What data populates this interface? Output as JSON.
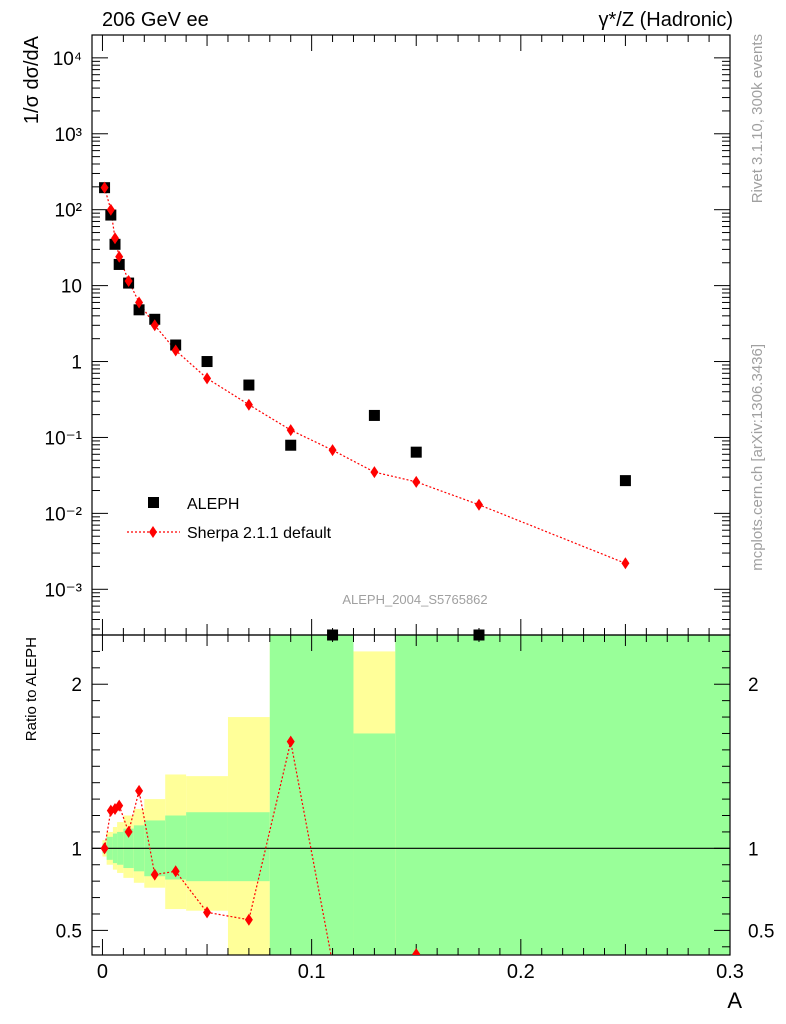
{
  "header": {
    "left": "206 GeV ee",
    "right": "γ*/Z (Hadronic)"
  },
  "side_labels": {
    "rivet": "Rivet 3.1.10,  300k events",
    "mcplots": "mcplots.cern.ch [arXiv:1306.3436]"
  },
  "analysis_id": "ALEPH_2004_S5765862",
  "colors": {
    "data": "#000000",
    "mc": "#ff0000",
    "band_inner": "#99ff99",
    "band_outer": "#ffff99"
  },
  "chart_data": [
    {
      "type": "scatter",
      "panel": "main",
      "ylabel": "1/σ  dσ/dA",
      "yscale": "log",
      "xlim": [
        -0.005,
        0.3
      ],
      "ylim": [
        0.00025,
        20000
      ],
      "y_ticks": [
        "10⁻³",
        "10⁻²",
        "10⁻¹",
        "1",
        "10",
        "10²",
        "10³",
        "10⁴"
      ],
      "legend": {
        "placement": "bottom-left",
        "entries": [
          "ALEPH",
          "Sherpa 2.1.1 default"
        ]
      },
      "series": [
        {
          "name": "ALEPH",
          "marker": "square",
          "x": [
            0.001,
            0.004,
            0.006,
            0.008,
            0.0125,
            0.0175,
            0.025,
            0.035,
            0.05,
            0.07,
            0.09,
            0.11,
            0.13,
            0.15,
            0.18,
            0.25
          ],
          "y": [
            195,
            85,
            35,
            19,
            10.8,
            4.8,
            3.6,
            1.65,
            1.0,
            0.49,
            0.079,
            0.00023,
            0.195,
            0.064,
            0.00023,
            0.027
          ]
        },
        {
          "name": "Sherpa 2.1.1 default",
          "marker": "diamond",
          "line": "dotted",
          "x": [
            0.001,
            0.004,
            0.006,
            0.008,
            0.0125,
            0.0175,
            0.025,
            0.035,
            0.05,
            0.07,
            0.09,
            0.11,
            0.13,
            0.15,
            0.18,
            0.25
          ],
          "y": [
            195,
            100,
            42,
            24,
            11.5,
            6.0,
            3.0,
            1.4,
            0.6,
            0.27,
            0.125,
            0.068,
            0.035,
            0.026,
            0.013,
            0.0022
          ]
        }
      ]
    },
    {
      "type": "line",
      "panel": "ratio",
      "ylabel": "Ratio to ALEPH",
      "xlabel": "A",
      "ylim": [
        0.35,
        2.3
      ],
      "y_ticks": [
        "0.5",
        "1",
        "2"
      ],
      "x_ticks": [
        "0",
        "0.1",
        "0.2",
        "0.3"
      ],
      "reference_line": 1,
      "series": [
        {
          "name": "Sherpa 2.1.1 default",
          "marker": "diamond",
          "line": "dotted",
          "x": [
            0.001,
            0.004,
            0.006,
            0.008,
            0.0125,
            0.0175,
            0.025,
            0.035,
            0.05,
            0.07,
            0.09,
            0.11,
            0.15
          ],
          "y": [
            1.0,
            1.23,
            1.24,
            1.26,
            1.1,
            1.35,
            0.84,
            0.86,
            0.61,
            0.565,
            1.65,
            0.3,
            0.355
          ]
        }
      ],
      "uncertainty_bands": [
        {
          "x0": 0.0,
          "x1": 0.002,
          "inner": [
            0.97,
            1.03
          ],
          "outer": [
            0.95,
            1.05
          ]
        },
        {
          "x0": 0.002,
          "x1": 0.005,
          "inner": [
            0.93,
            1.07
          ],
          "outer": [
            0.9,
            1.1
          ]
        },
        {
          "x0": 0.005,
          "x1": 0.007,
          "inner": [
            0.91,
            1.09
          ],
          "outer": [
            0.87,
            1.13
          ]
        },
        {
          "x0": 0.007,
          "x1": 0.01,
          "inner": [
            0.9,
            1.1
          ],
          "outer": [
            0.85,
            1.16
          ]
        },
        {
          "x0": 0.01,
          "x1": 0.015,
          "inner": [
            0.88,
            1.12
          ],
          "outer": [
            0.82,
            1.2
          ]
        },
        {
          "x0": 0.015,
          "x1": 0.02,
          "inner": [
            0.86,
            1.14
          ],
          "outer": [
            0.79,
            1.24
          ]
        },
        {
          "x0": 0.02,
          "x1": 0.03,
          "inner": [
            0.83,
            1.17
          ],
          "outer": [
            0.76,
            1.3
          ]
        },
        {
          "x0": 0.03,
          "x1": 0.04,
          "inner": [
            0.81,
            1.2
          ],
          "outer": [
            0.63,
            1.45
          ]
        },
        {
          "x0": 0.04,
          "x1": 0.06,
          "inner": [
            0.8,
            1.22
          ],
          "outer": [
            0.62,
            1.44
          ]
        },
        {
          "x0": 0.06,
          "x1": 0.08,
          "inner": [
            0.8,
            1.22
          ],
          "outer": [
            0.35,
            1.8
          ]
        },
        {
          "x0": 0.08,
          "x1": 0.12,
          "inner": [
            0.35,
            2.3
          ],
          "outer": [
            0.35,
            2.3
          ]
        },
        {
          "x0": 0.12,
          "x1": 0.14,
          "inner": [
            0.35,
            1.7
          ],
          "outer": [
            0.35,
            2.2
          ]
        },
        {
          "x0": 0.14,
          "x1": 0.3,
          "inner": [
            0.35,
            2.3
          ],
          "outer": [
            0.35,
            2.3
          ]
        }
      ]
    }
  ]
}
